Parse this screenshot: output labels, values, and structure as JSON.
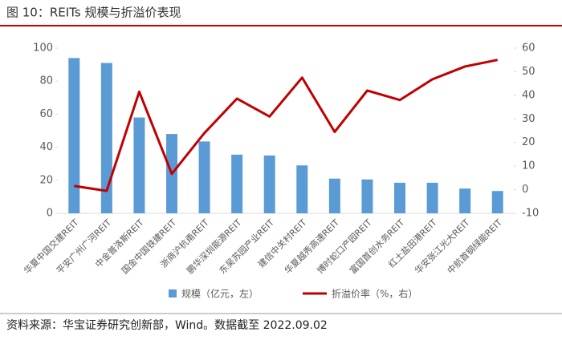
{
  "chart_data": {
    "type": "bar_line",
    "title": "图 10：REITs 规模与折溢价表现",
    "categories": [
      "华夏中国交建REIT",
      "平安广州广河REIT",
      "中金普洛斯REIT",
      "国金中国铁建REIT",
      "浙商沪杭甬REIT",
      "鹏华深圳能源REIT",
      "东吴苏园产业REIT",
      "建信中关村REIT",
      "华夏越秀高速REIT",
      "博时蛇口产园REIT",
      "富国首创水务REIT",
      "红土盐田港REIT",
      "华安张江光大REIT",
      "中航首钢绿能REIT"
    ],
    "series": [
      {
        "name": "规模（亿元，左）",
        "type": "bar",
        "color": "#5b9bd5",
        "values": [
          94,
          91,
          58,
          48,
          43.5,
          35.5,
          35,
          29,
          21,
          20.5,
          18.5,
          18.5,
          15,
          13.5
        ]
      },
      {
        "name": "折溢价率（%，右）",
        "type": "line",
        "axis": "y2",
        "color": "#c00000",
        "values": [
          1.6,
          -0.5,
          41.5,
          6.7,
          24,
          38.6,
          31,
          47.5,
          24.5,
          42,
          38,
          46.8,
          52.2,
          55
        ]
      }
    ],
    "ylim": [
      0,
      100
    ],
    "yticks": [
      0,
      20,
      40,
      60,
      80,
      100
    ],
    "y2lim": [
      -10,
      60
    ],
    "y2ticks": [
      -10,
      0,
      10,
      20,
      30,
      40,
      50,
      60
    ],
    "legend": "bottom",
    "source": "资料来源：华宝证券研究创新部，Wind。数据截至 2022.09.02"
  }
}
